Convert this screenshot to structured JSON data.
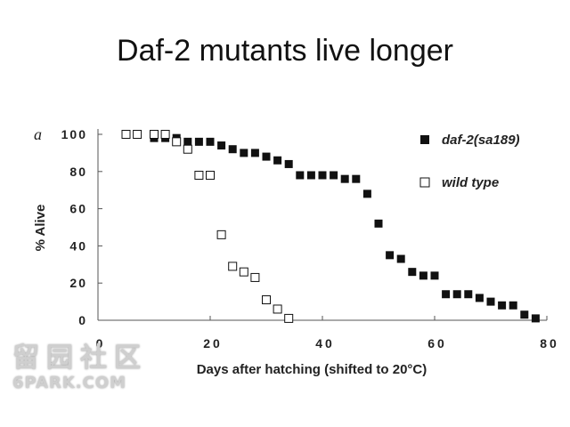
{
  "title": "Daf-2 mutants live longer",
  "watermark": {
    "line1": "留园社区",
    "line2": "6PARK.COM"
  },
  "chart_data": {
    "type": "scatter",
    "panel_label": "a",
    "xlabel": "Days after hatching (shifted to 20°C)",
    "ylabel": "% Alive",
    "xlim": [
      0,
      80
    ],
    "ylim": [
      0,
      100
    ],
    "xticks": [
      0,
      20,
      40,
      60,
      80
    ],
    "yticks": [
      0,
      20,
      40,
      60,
      80,
      100
    ],
    "xtick_labels": [
      "0",
      "20",
      "40",
      "60",
      "80"
    ],
    "ytick_labels": [
      "0",
      "20",
      "40",
      "60",
      "80",
      "100"
    ],
    "legend_position": "top-right",
    "grid": false,
    "series": [
      {
        "name": "daf-2(sa189)",
        "marker": "filled-square",
        "color": "#111111",
        "x": [
          10,
          12,
          14,
          16,
          18,
          20,
          22,
          24,
          26,
          28,
          30,
          32,
          34,
          36,
          38,
          40,
          42,
          44,
          46,
          48,
          50,
          52,
          54,
          56,
          58,
          60,
          62,
          64,
          66,
          68,
          70,
          72,
          74,
          76,
          78
        ],
        "y": [
          98,
          98,
          98,
          96,
          96,
          96,
          94,
          92,
          90,
          90,
          88,
          86,
          84,
          78,
          78,
          78,
          78,
          76,
          76,
          68,
          52,
          35,
          33,
          26,
          24,
          24,
          14,
          14,
          14,
          12,
          10,
          8,
          8,
          3,
          1
        ]
      },
      {
        "name": "wild type",
        "marker": "open-square",
        "color": "#111111",
        "x": [
          5,
          7,
          10,
          12,
          14,
          16,
          18,
          20,
          22,
          24,
          26,
          28,
          30,
          32,
          34
        ],
        "y": [
          100,
          100,
          100,
          100,
          96,
          92,
          78,
          78,
          46,
          29,
          26,
          23,
          11,
          6,
          1
        ]
      }
    ]
  }
}
